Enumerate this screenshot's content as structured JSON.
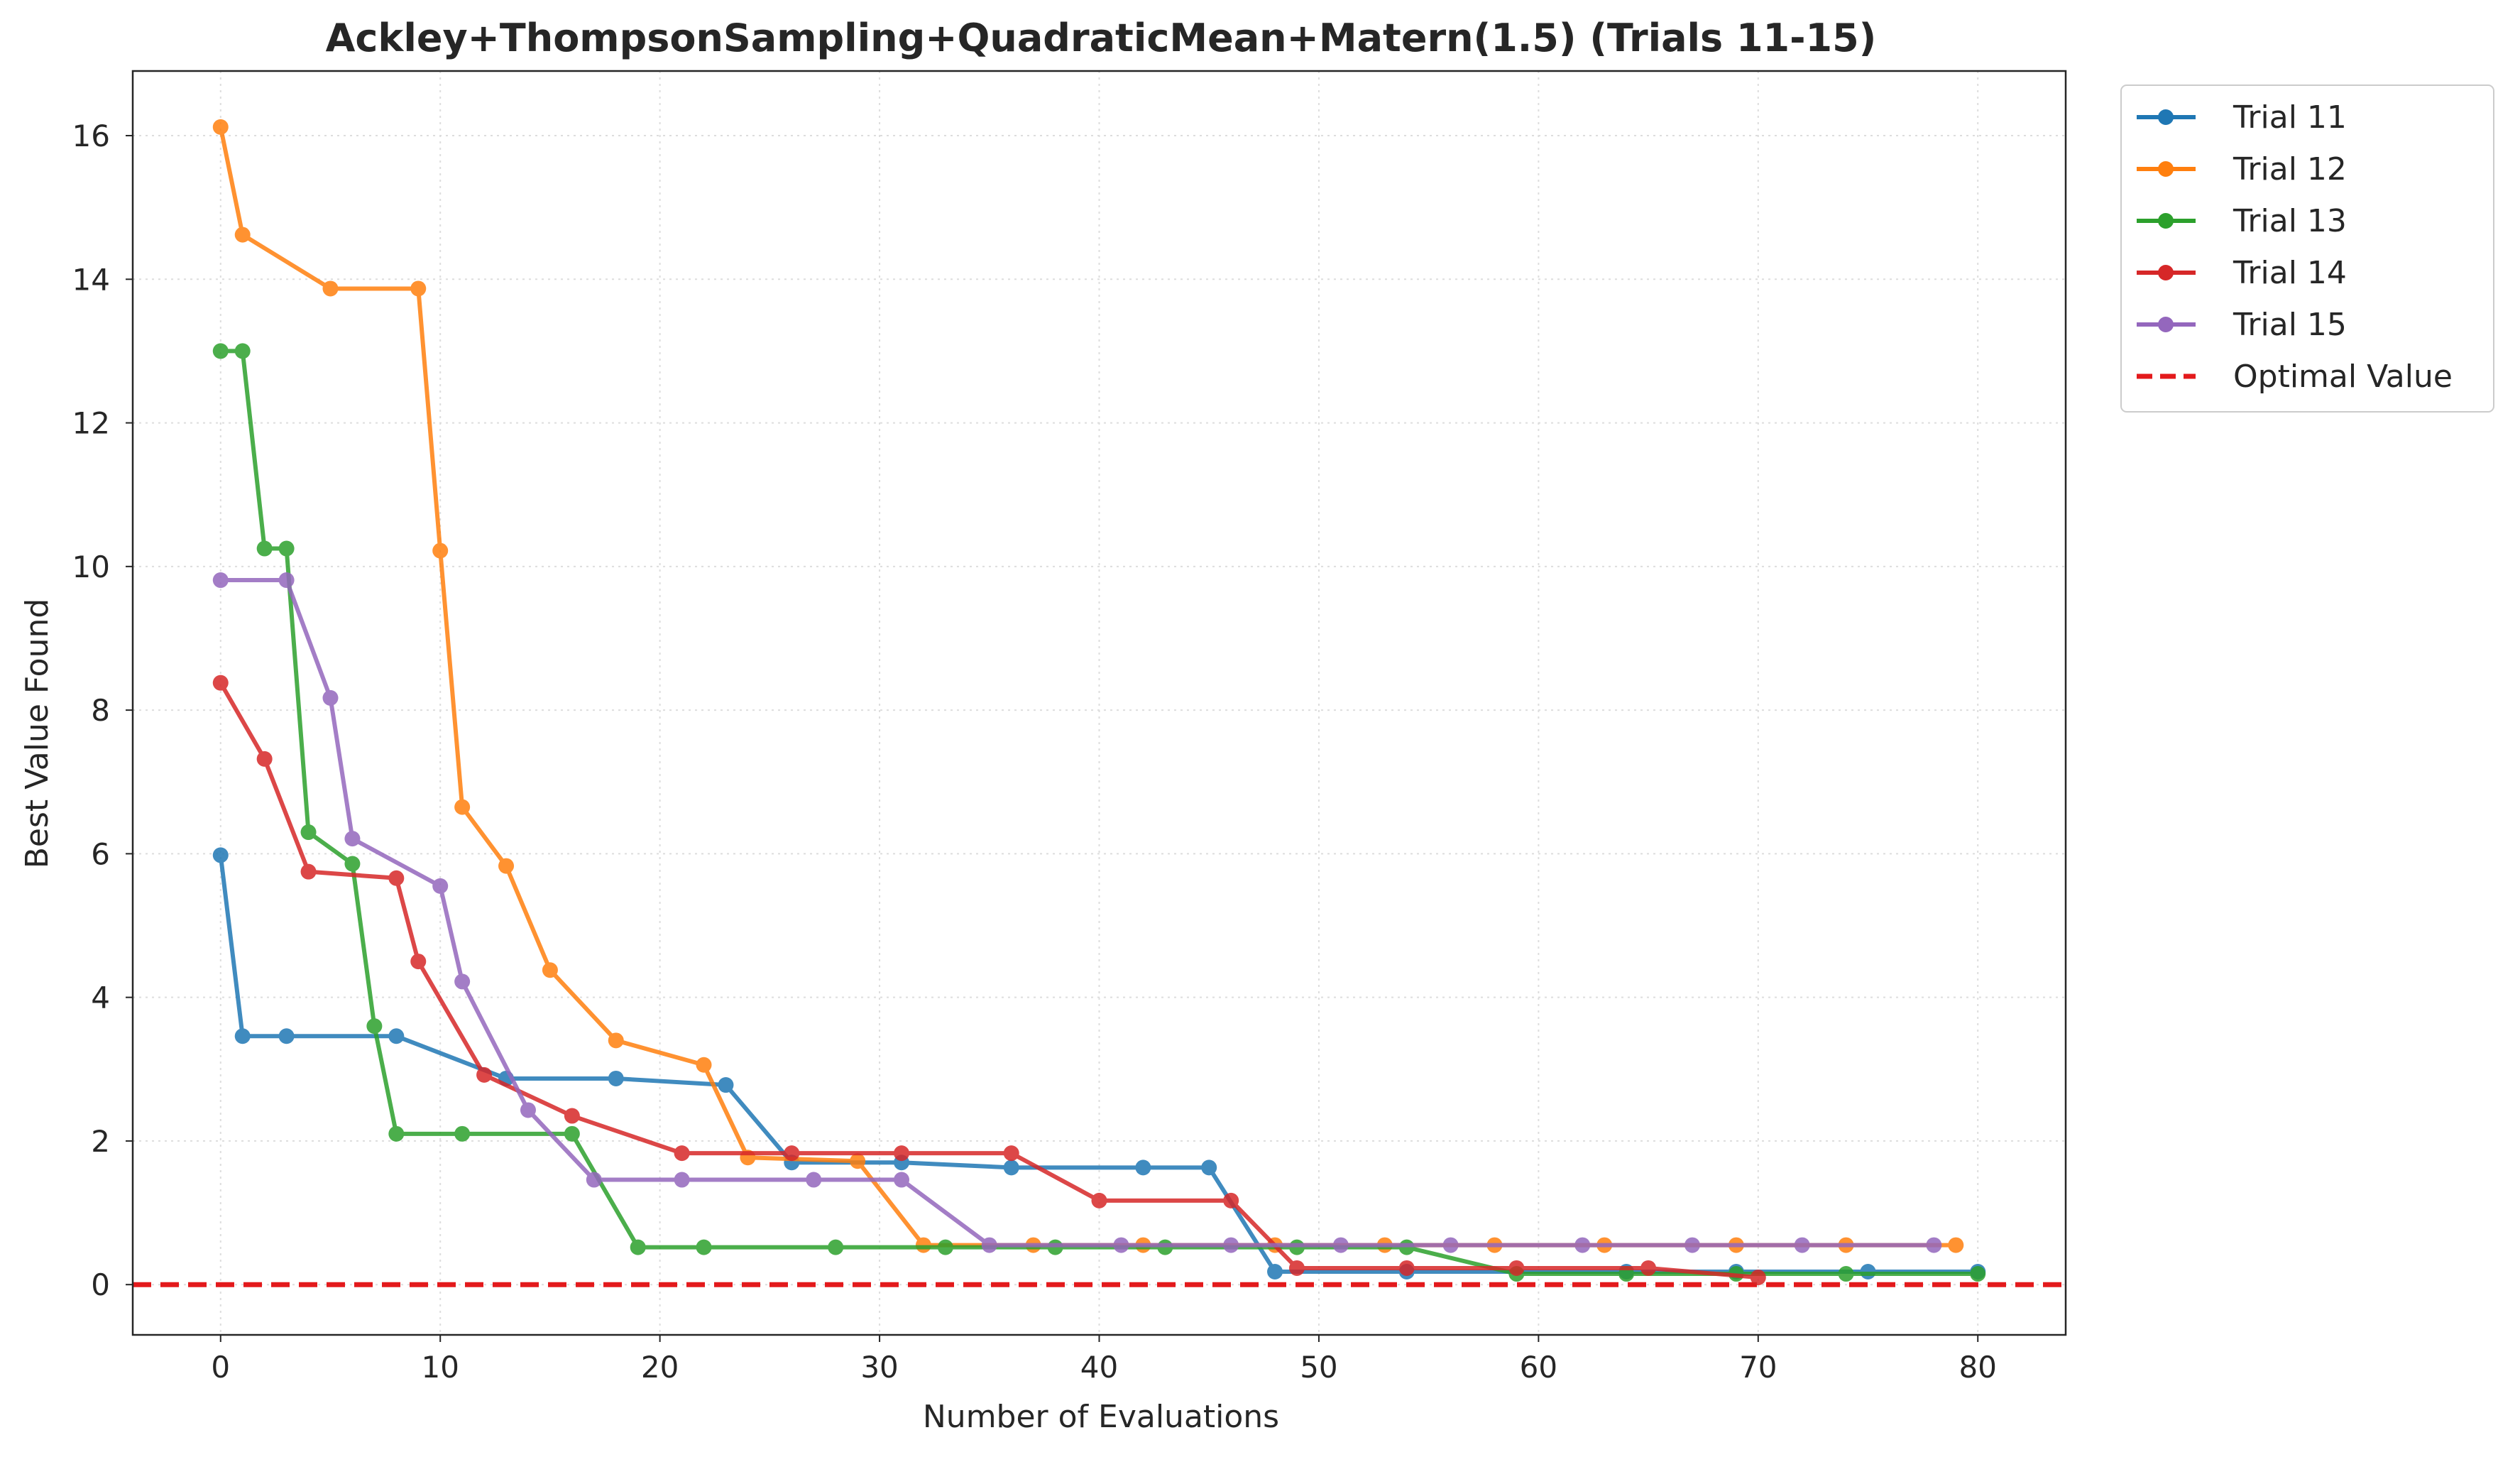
{
  "chart_data": {
    "type": "line",
    "title": "Ackley+ThompsonSampling+QuadraticMean+Matern(1.5) (Trials 11-15)",
    "xlabel": "Number of Evaluations",
    "ylabel": "Best Value Found",
    "xlim": [
      -4,
      84
    ],
    "ylim": [
      -0.7,
      16.9
    ],
    "xticks": [
      0,
      10,
      20,
      30,
      40,
      50,
      60,
      70,
      80
    ],
    "yticks": [
      0,
      2,
      4,
      6,
      8,
      10,
      12,
      14,
      16
    ],
    "grid": true,
    "legend_position": "outside top-right",
    "series": [
      {
        "name": "Trial 11",
        "color": "#1f77b4",
        "x": [
          0,
          1,
          3,
          8,
          13,
          18,
          23,
          26,
          31,
          36,
          42,
          45,
          48,
          54,
          64,
          69,
          75,
          80
        ],
        "y": [
          5.98,
          3.46,
          3.46,
          3.46,
          2.87,
          2.87,
          2.78,
          1.7,
          1.7,
          1.63,
          1.63,
          1.63,
          0.18,
          0.18,
          0.18,
          0.18,
          0.18,
          0.18
        ]
      },
      {
        "name": "Trial 12",
        "color": "#ff7f0e",
        "x": [
          0,
          1,
          5,
          9,
          10,
          11,
          13,
          15,
          18,
          22,
          24,
          29,
          32,
          37,
          42,
          48,
          53,
          58,
          63,
          69,
          74,
          79
        ],
        "y": [
          16.12,
          14.62,
          13.87,
          13.87,
          10.22,
          6.65,
          5.83,
          4.38,
          3.4,
          3.06,
          1.77,
          1.72,
          0.55,
          0.55,
          0.55,
          0.55,
          0.55,
          0.55,
          0.55,
          0.55,
          0.55,
          0.55
        ]
      },
      {
        "name": "Trial 13",
        "color": "#2ca02c",
        "x": [
          0,
          1,
          2,
          3,
          4,
          6,
          7,
          8,
          11,
          16,
          19,
          22,
          28,
          33,
          38,
          43,
          49,
          54,
          59,
          64,
          69,
          74,
          80
        ],
        "y": [
          13.0,
          13.0,
          10.25,
          10.25,
          6.3,
          5.86,
          3.6,
          2.1,
          2.1,
          2.1,
          0.52,
          0.52,
          0.52,
          0.52,
          0.52,
          0.52,
          0.52,
          0.52,
          0.15,
          0.15,
          0.15,
          0.15,
          0.15
        ]
      },
      {
        "name": "Trial 14",
        "color": "#d62728",
        "x": [
          0,
          2,
          4,
          8,
          9,
          12,
          16,
          21,
          26,
          31,
          36,
          40,
          46,
          49,
          54,
          59,
          65,
          70
        ],
        "y": [
          8.38,
          7.32,
          5.75,
          5.66,
          4.5,
          2.92,
          2.35,
          1.83,
          1.83,
          1.83,
          1.83,
          1.17,
          1.17,
          0.23,
          0.23,
          0.23,
          0.23,
          0.1
        ]
      },
      {
        "name": "Trial 15",
        "color": "#9467bd",
        "x": [
          0,
          3,
          5,
          6,
          10,
          11,
          14,
          17,
          21,
          27,
          31,
          35,
          41,
          46,
          51,
          56,
          62,
          67,
          72,
          78
        ],
        "y": [
          9.81,
          9.81,
          8.17,
          6.21,
          5.55,
          4.22,
          2.43,
          1.46,
          1.46,
          1.46,
          1.46,
          0.55,
          0.55,
          0.55,
          0.55,
          0.55,
          0.55,
          0.55,
          0.55,
          0.55
        ]
      }
    ],
    "reference_line": {
      "name": "Optimal Value",
      "y": 0,
      "color": "#e31a1c",
      "style": "dashed"
    }
  }
}
